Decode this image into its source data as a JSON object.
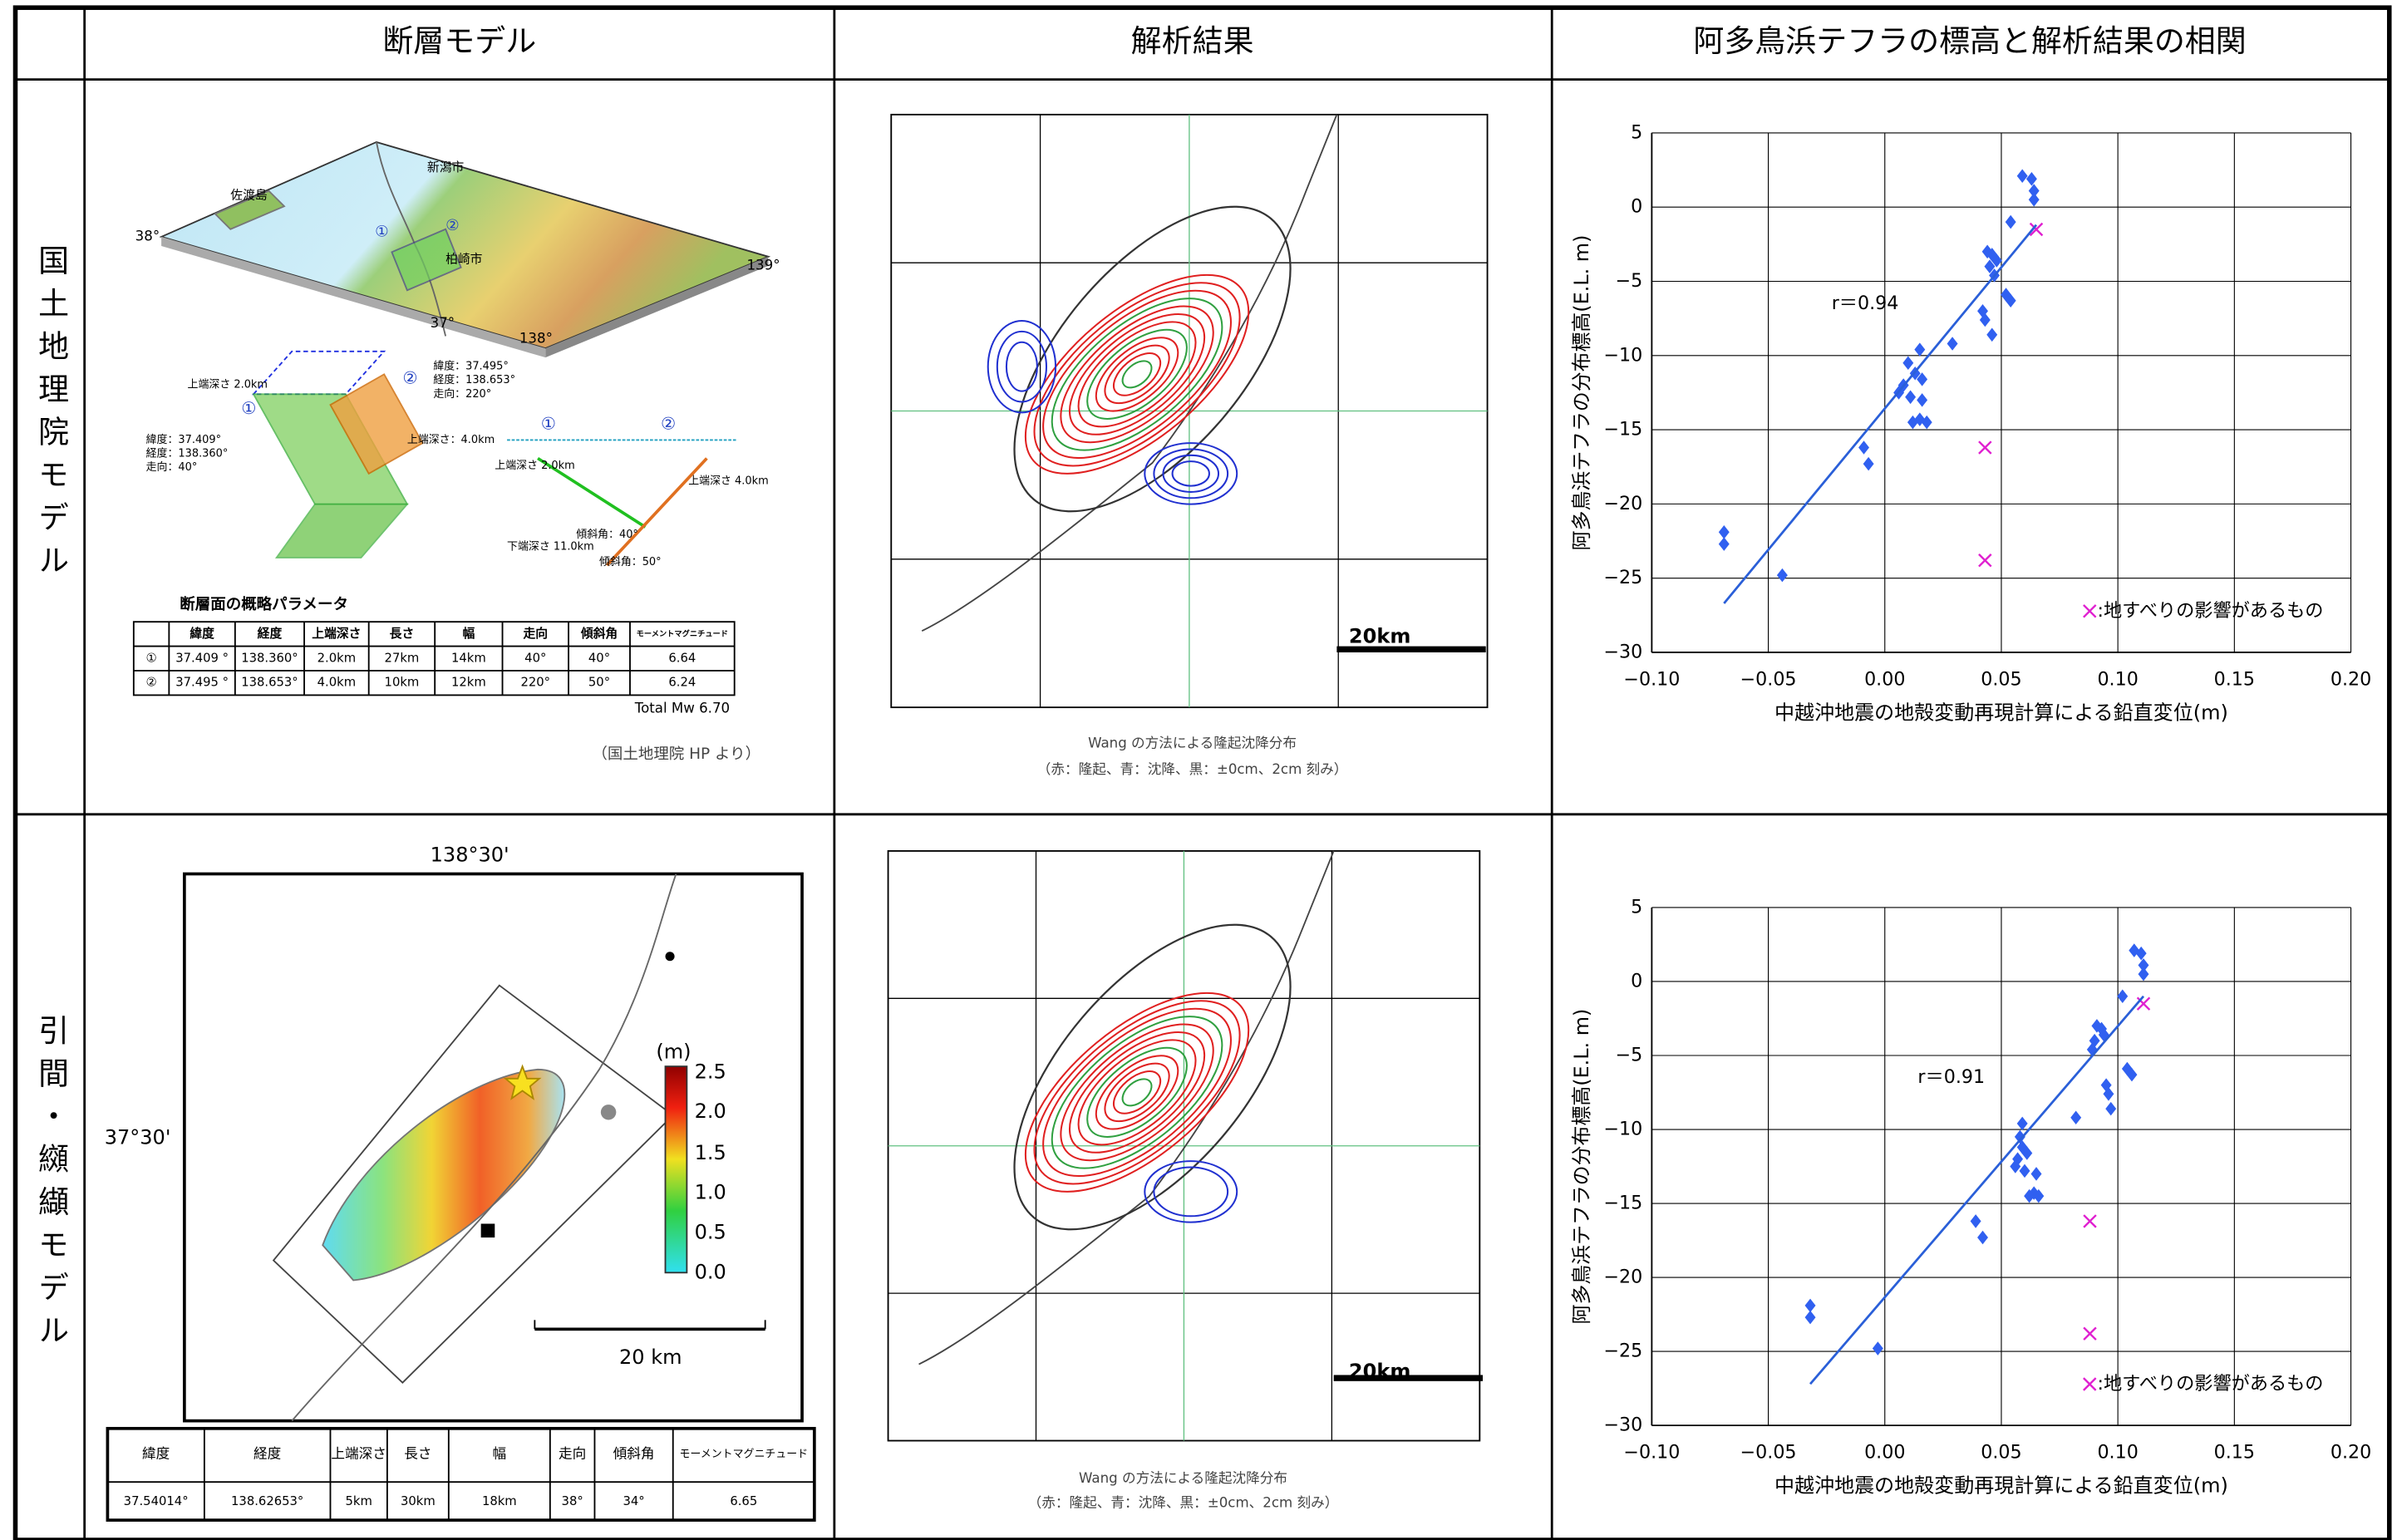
{
  "table": {
    "columns": [
      "断層モデル",
      "解析結果",
      "阿多鳥浜テフラの標高と解析結果の相関"
    ],
    "rows": [
      {
        "label": "国土地理院モデル",
        "fault_model": {
          "map_labels": [
            "新潟市",
            "佐渡島",
            "柏崎市",
            "38°",
            "139°",
            "37°",
            "138°",
            "①",
            "②"
          ],
          "diagram_labels": [
            "①",
            "②",
            "上端深さ 2.0km",
            "上端深さ：4.0km",
            "緯度：37.409°",
            "経度：138.360°",
            "走向：40°",
            "緯度：37.495°",
            "経度：138.653°",
            "走向：220°",
            "①",
            "②",
            "上端深さ 2.0km",
            "上端深さ 4.0km",
            "下端深さ 11.0km",
            "傾斜角：40°",
            "傾斜角：50°"
          ],
          "param_title": "断層面の概略パラメータ",
          "param_header": [
            "",
            "緯度",
            "経度",
            "上端深さ",
            "長さ",
            "幅",
            "走向",
            "傾斜角",
            "モーメントマグニチュード"
          ],
          "param_rows": [
            [
              "①",
              "37.409 °",
              "138.360°",
              "2.0km",
              "27km",
              "14km",
              "40°",
              "40°",
              "6.64"
            ],
            [
              "②",
              "37.495 °",
              "138.653°",
              "4.0km",
              "10km",
              "12km",
              "220°",
              "50°",
              "6.24"
            ]
          ],
          "total": "Total Mw 6.70",
          "source": "（国土地理院 HP より）"
        },
        "analysis": {
          "scale": "20km",
          "caption": "Wang の方法による隆起沈降分布",
          "note": "（赤：隆起、青：沈降、黒：±0cm、2cm 刻み）"
        }
      },
      {
        "label": "引間・纐纈モデル",
        "fault_model": {
          "map_labels": [
            "138°30'",
            "37°30'",
            "(m)",
            "2.5",
            "2.0",
            "1.5",
            "1.0",
            "0.5",
            "0.0",
            "20 km"
          ],
          "param_header": [
            "緯度",
            "経度",
            "上端深さ",
            "長さ",
            "幅",
            "走向",
            "傾斜角",
            "モーメントマグニチュード"
          ],
          "param_row": [
            "37.54014°",
            "138.62653°",
            "5km",
            "30km",
            "18km",
            "38°",
            "34°",
            "6.65"
          ]
        },
        "analysis": {
          "scale": "20km",
          "caption": "Wang の方法による隆起沈降分布",
          "note": "（赤：隆起、青：沈降、黒：±0cm、2cm 刻み）"
        }
      }
    ]
  },
  "chart_data": [
    {
      "type": "scatter",
      "xlabel": "中越沖地震の地殻変動再現計算による鉛直変位(m)",
      "ylabel": "阿多鳥浜テフラの分布標高(E.L. m)",
      "xlim": [
        -0.1,
        0.2
      ],
      "xticks": [
        {
          "value": -0.1,
          "label": "−0.10"
        },
        {
          "value": -0.05,
          "label": "−0.05"
        },
        {
          "value": 0,
          "label": "0.00"
        },
        {
          "value": 0.05,
          "label": "0.05"
        },
        {
          "value": 0.1,
          "label": "0.10"
        },
        {
          "value": 0.15,
          "label": "0.15"
        },
        {
          "value": 0.2,
          "label": "0.20"
        }
      ],
      "ylim": [
        -30,
        5
      ],
      "yticks": [
        5,
        0,
        {
          "value": -5,
          "label": "−5"
        },
        {
          "value": -10,
          "label": "−10"
        },
        {
          "value": -15,
          "label": "−15"
        },
        {
          "value": -20,
          "label": "−20"
        },
        {
          "value": -25,
          "label": "−25"
        },
        {
          "value": -30,
          "label": "−30"
        }
      ],
      "grid": true,
      "series": [
        {
          "marker": "diamond",
          "color": "#3060f0",
          "x": [
            -0.069,
            -0.069,
            -0.044,
            -0.009,
            -0.007,
            0.01,
            0.013,
            0.008,
            0.006,
            0.011,
            0.016,
            0.015,
            0.012,
            0.018,
            0.016,
            0.015,
            0.029,
            0.042,
            0.043,
            0.046,
            0.044,
            0.046,
            0.048,
            0.045,
            0.047,
            0.052,
            0.054,
            0.054,
            0.059,
            0.063,
            0.064,
            0.064
          ],
          "values": [
            -21.9,
            -22.7,
            -24.8,
            -16.2,
            -17.3,
            -10.5,
            -11.2,
            -12.0,
            -12.5,
            -12.8,
            -13.0,
            -14.3,
            -14.5,
            -14.5,
            -11.6,
            -9.6,
            -9.2,
            -7.0,
            -7.6,
            -8.6,
            -3.0,
            -3.2,
            -3.6,
            -4.0,
            -4.6,
            -5.9,
            -6.3,
            -1.0,
            2.1,
            1.9,
            1.1,
            0.5
          ]
        },
        {
          "name": ":地すべりの影響があるもの",
          "marker": "x",
          "color": "#e020d0",
          "x": [
            0.065,
            0.043,
            0.043
          ],
          "values": [
            -1.5,
            -16.2,
            -23.8
          ]
        }
      ],
      "trendline": {
        "color": "#2a5fd8",
        "x": [
          -0.069,
          0.065
        ],
        "values": [
          -26.7,
          -1.2
        ],
        "label": "r＝0.94"
      }
    },
    {
      "type": "scatter",
      "xlabel": "中越沖地震の地殻変動再現計算による鉛直変位(m)",
      "ylabel": "阿多鳥浜テフラの分布標高(E.L. m)",
      "xlim": [
        -0.1,
        0.2
      ],
      "xticks": [
        {
          "value": -0.1,
          "label": "−0.10"
        },
        {
          "value": -0.05,
          "label": "−0.05"
        },
        {
          "value": 0,
          "label": "0.00"
        },
        {
          "value": 0.05,
          "label": "0.05"
        },
        {
          "value": 0.1,
          "label": "0.10"
        },
        {
          "value": 0.15,
          "label": "0.15"
        },
        {
          "value": 0.2,
          "label": "0.20"
        }
      ],
      "ylim": [
        -30,
        5
      ],
      "yticks": [
        5,
        0,
        {
          "value": -5,
          "label": "−5"
        },
        {
          "value": -10,
          "label": "−10"
        },
        {
          "value": -15,
          "label": "−15"
        },
        {
          "value": -20,
          "label": "−20"
        },
        {
          "value": -25,
          "label": "−25"
        },
        {
          "value": -30,
          "label": "−30"
        }
      ],
      "grid": true,
      "series": [
        {
          "marker": "diamond",
          "color": "#3060f0",
          "x": [
            -0.032,
            -0.032,
            -0.003,
            0.039,
            0.042,
            0.058,
            0.059,
            0.057,
            0.056,
            0.06,
            0.065,
            0.064,
            0.062,
            0.066,
            0.061,
            0.059,
            0.082,
            0.095,
            0.096,
            0.097,
            0.091,
            0.093,
            0.094,
            0.09,
            0.089,
            0.104,
            0.106,
            0.102,
            0.107,
            0.11,
            0.111,
            0.111
          ],
          "values": [
            -21.9,
            -22.7,
            -24.8,
            -16.2,
            -17.3,
            -10.5,
            -11.2,
            -12.0,
            -12.5,
            -12.8,
            -13.0,
            -14.3,
            -14.5,
            -14.5,
            -11.6,
            -9.6,
            -9.2,
            -7.0,
            -7.6,
            -8.6,
            -3.0,
            -3.2,
            -3.6,
            -4.0,
            -4.6,
            -5.9,
            -6.3,
            -1.0,
            2.1,
            1.9,
            1.1,
            0.5
          ]
        },
        {
          "name": ":地すべりの影響があるもの",
          "marker": "x",
          "color": "#e020d0",
          "x": [
            0.111,
            0.088,
            0.088
          ],
          "values": [
            -1.5,
            -16.2,
            -23.8
          ]
        }
      ],
      "trendline": {
        "color": "#2a5fd8",
        "x": [
          -0.032,
          0.111
        ],
        "values": [
          -27.2,
          -1.0
        ],
        "label": "r＝0.91"
      }
    }
  ]
}
